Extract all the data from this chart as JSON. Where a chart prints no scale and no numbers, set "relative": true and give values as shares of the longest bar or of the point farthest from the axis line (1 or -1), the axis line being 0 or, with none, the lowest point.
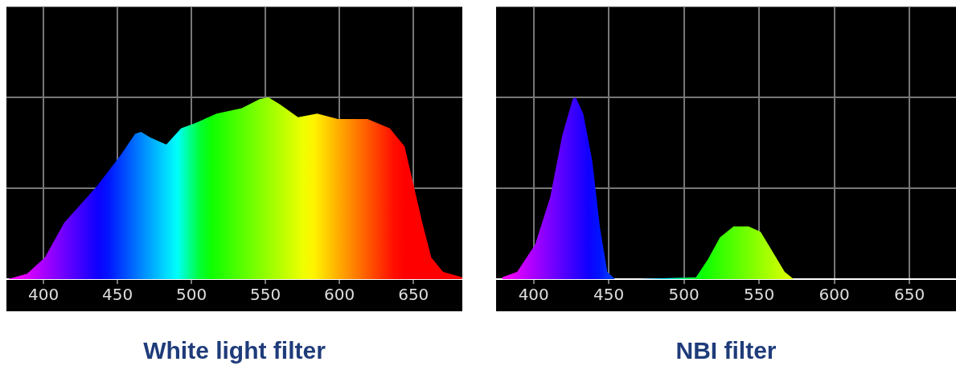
{
  "chart_data": [
    {
      "type": "area",
      "title": "White light filter",
      "relative": true,
      "xlim": [
        375,
        683
      ],
      "xticks": [
        400,
        450,
        500,
        550,
        600,
        650
      ],
      "grid": true,
      "tick_labels": "x",
      "series": [
        {
          "x": [
            376,
            389,
            401,
            414,
            436,
            452,
            462,
            466,
            472,
            483,
            493,
            503,
            517,
            534,
            546,
            552,
            560,
            572,
            585,
            599,
            619,
            634,
            644,
            650,
            656,
            662,
            670,
            683
          ],
          "values": [
            0,
            0.03,
            0.12,
            0.31,
            0.51,
            0.68,
            0.8,
            0.81,
            0.78,
            0.74,
            0.83,
            0.86,
            0.91,
            0.94,
            0.99,
            1,
            0.96,
            0.89,
            0.91,
            0.88,
            0.88,
            0.83,
            0.73,
            0.52,
            0.31,
            0.12,
            0.04,
            0.01
          ]
        }
      ]
    },
    {
      "type": "area",
      "title": "NBI filter",
      "relative": true,
      "xlim": [
        375,
        681
      ],
      "xticks": [
        400,
        450,
        500,
        550,
        600,
        650
      ],
      "grid": true,
      "tick_labels": "x",
      "series": [
        {
          "x": [
            379,
            389,
            401,
            411,
            419,
            426,
            428,
            433,
            439,
            444,
            449,
            454,
            470,
            508,
            516,
            524,
            533,
            543,
            551,
            559,
            567,
            573,
            628,
            680
          ],
          "values": [
            0.01,
            0.04,
            0.19,
            0.45,
            0.79,
            0.99,
            1,
            0.91,
            0.65,
            0.29,
            0.04,
            0,
            0,
            0.01,
            0.11,
            0.23,
            0.29,
            0.29,
            0.26,
            0.15,
            0.04,
            0,
            0,
            0
          ]
        }
      ]
    }
  ]
}
